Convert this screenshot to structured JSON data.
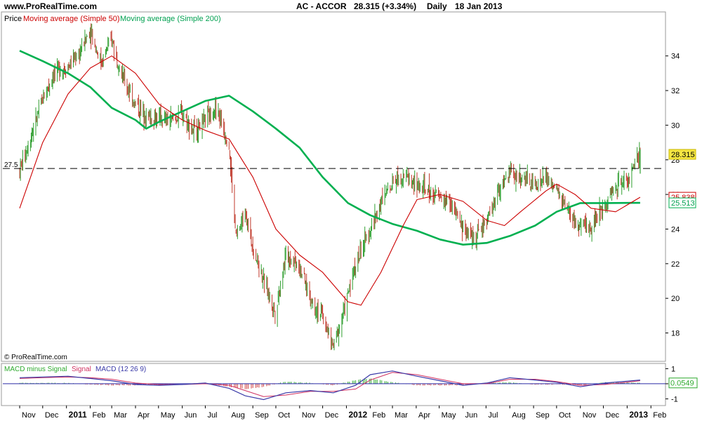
{
  "header": {
    "site": "www.ProRealTime.com",
    "title": "AC - ACCOR",
    "quote": "28.315 (+3.34%)",
    "period": "Daily",
    "date": "18 Jan 2013"
  },
  "watermark": "© ProRealTime.com",
  "legend": {
    "price": "Price",
    "ma50": "Moving average (Simple 50)",
    "ma200": "Moving average (Simple 200)"
  },
  "macd_legend": {
    "a": "MACD minus Signal",
    "b": "Signal",
    "c": "MACD (12 26 9)"
  },
  "colors": {
    "ma50": "#cc0000",
    "ma200": "#00b050",
    "candle_up": "#2f9e2f",
    "candle_down": "#c0392b",
    "macd": "#3a3aa8",
    "signal": "#d03060",
    "hist_pos": "#2eaa2e",
    "hist_neg": "#d04040",
    "zero_line": "#2a2aa8"
  },
  "chart_data": [
    {
      "type": "candlestick",
      "title": "AC - ACCOR",
      "y_ticks": [
        18,
        20,
        22,
        24,
        26,
        28,
        30,
        32,
        34
      ],
      "ylim": [
        16.4,
        36.5
      ],
      "grid": false,
      "reference_line": {
        "value": 27.5,
        "label": "27.5"
      },
      "last_price": "28.315",
      "ma200_last": "25.513",
      "ma50_last": "25.838",
      "x_labels": [
        "Nov",
        "Dec",
        "2011",
        "Feb",
        "Mar",
        "Apr",
        "May",
        "Jun",
        "Jul",
        "Aug",
        "Sep",
        "Oct",
        "Nov",
        "Dec",
        "2012",
        "Feb",
        "Mar",
        "Apr",
        "May",
        "Jun",
        "Jul",
        "Aug",
        "Sep",
        "Oct",
        "Nov",
        "Dec",
        "2013",
        "Feb"
      ],
      "series": [
        {
          "name": "Price",
          "points": [
            [
              "2010-11-01",
              27.4
            ],
            [
              "2010-11-15",
              29.3
            ],
            [
              "2010-12-01",
              31.5
            ],
            [
              "2010-12-15",
              33.0
            ],
            [
              "2011-01-03",
              33.4
            ],
            [
              "2011-01-18",
              34.2
            ],
            [
              "2011-02-01",
              35.5
            ],
            [
              "2011-02-15",
              33.6
            ],
            [
              "2011-03-01",
              35.0
            ],
            [
              "2011-03-15",
              32.8
            ],
            [
              "2011-04-01",
              31.2
            ],
            [
              "2011-04-15",
              30.5
            ],
            [
              "2011-05-02",
              30.4
            ],
            [
              "2011-05-16",
              30.2
            ],
            [
              "2011-06-01",
              30.7
            ],
            [
              "2011-06-15",
              29.7
            ],
            [
              "2011-07-01",
              30.3
            ],
            [
              "2011-07-15",
              31.0
            ],
            [
              "2011-08-01",
              28.8
            ],
            [
              "2011-08-10",
              23.5
            ],
            [
              "2011-08-22",
              25.0
            ],
            [
              "2011-09-01",
              23.0
            ],
            [
              "2011-09-15",
              21.0
            ],
            [
              "2011-09-30",
              19.2
            ],
            [
              "2011-10-14",
              22.5
            ],
            [
              "2011-10-31",
              22.0
            ],
            [
              "2011-11-15",
              20.0
            ],
            [
              "2011-11-30",
              19.0
            ],
            [
              "2011-12-15",
              17.2
            ],
            [
              "2011-12-30",
              19.5
            ],
            [
              "2012-01-13",
              22.0
            ],
            [
              "2012-02-01",
              24.0
            ],
            [
              "2012-02-15",
              25.5
            ],
            [
              "2012-03-01",
              26.8
            ],
            [
              "2012-03-15",
              27.2
            ],
            [
              "2012-04-02",
              26.5
            ],
            [
              "2012-04-16",
              26.2
            ],
            [
              "2012-05-02",
              25.8
            ],
            [
              "2012-05-16",
              25.5
            ],
            [
              "2012-06-01",
              24.0
            ],
            [
              "2012-06-15",
              23.5
            ],
            [
              "2012-07-02",
              24.5
            ],
            [
              "2012-07-16",
              26.0
            ],
            [
              "2012-08-01",
              27.3
            ],
            [
              "2012-08-15",
              27.0
            ],
            [
              "2012-09-03",
              26.5
            ],
            [
              "2012-09-17",
              27.0
            ],
            [
              "2012-10-01",
              26.2
            ],
            [
              "2012-10-15",
              25.0
            ],
            [
              "2012-11-01",
              24.0
            ],
            [
              "2012-11-15",
              24.2
            ],
            [
              "2012-12-03",
              25.5
            ],
            [
              "2012-12-17",
              26.5
            ],
            [
              "2013-01-04",
              27.0
            ],
            [
              "2013-01-18",
              28.315
            ]
          ]
        },
        {
          "name": "Moving average (Simple 50)",
          "points": [
            [
              "2010-11-01",
              25.2
            ],
            [
              "2010-12-01",
              29.0
            ],
            [
              "2011-01-03",
              31.8
            ],
            [
              "2011-02-01",
              33.3
            ],
            [
              "2011-03-01",
              34.0
            ],
            [
              "2011-04-01",
              33.0
            ],
            [
              "2011-05-02",
              31.2
            ],
            [
              "2011-06-01",
              30.3
            ],
            [
              "2011-07-01",
              29.7
            ],
            [
              "2011-08-01",
              29.2
            ],
            [
              "2011-09-01",
              27.0
            ],
            [
              "2011-10-01",
              24.0
            ],
            [
              "2011-11-01",
              22.5
            ],
            [
              "2011-12-01",
              21.5
            ],
            [
              "2012-01-03",
              19.8
            ],
            [
              "2012-01-20",
              19.6
            ],
            [
              "2012-02-15",
              21.5
            ],
            [
              "2012-03-15",
              24.2
            ],
            [
              "2012-04-02",
              25.7
            ],
            [
              "2012-05-02",
              26.0
            ],
            [
              "2012-06-01",
              25.6
            ],
            [
              "2012-07-02",
              24.5
            ],
            [
              "2012-07-25",
              24.2
            ],
            [
              "2012-08-15",
              25.0
            ],
            [
              "2012-09-17",
              26.2
            ],
            [
              "2012-10-01",
              26.6
            ],
            [
              "2012-10-25",
              26.0
            ],
            [
              "2012-11-15",
              25.2
            ],
            [
              "2012-12-17",
              25.0
            ],
            [
              "2013-01-18",
              25.838
            ]
          ]
        },
        {
          "name": "Moving average (Simple 200)",
          "points": [
            [
              "2010-11-01",
              34.3
            ],
            [
              "2010-12-01",
              33.7
            ],
            [
              "2011-01-03",
              33.0
            ],
            [
              "2011-02-01",
              32.2
            ],
            [
              "2011-03-01",
              31.0
            ],
            [
              "2011-04-01",
              30.3
            ],
            [
              "2011-04-15",
              29.8
            ],
            [
              "2011-05-02",
              30.2
            ],
            [
              "2011-06-01",
              30.8
            ],
            [
              "2011-07-01",
              31.4
            ],
            [
              "2011-08-01",
              31.7
            ],
            [
              "2011-09-01",
              30.8
            ],
            [
              "2011-10-01",
              29.8
            ],
            [
              "2011-11-01",
              28.7
            ],
            [
              "2011-12-01",
              27.0
            ],
            [
              "2012-01-03",
              25.5
            ],
            [
              "2012-02-01",
              24.8
            ],
            [
              "2012-03-01",
              24.3
            ],
            [
              "2012-04-02",
              23.9
            ],
            [
              "2012-05-02",
              23.4
            ],
            [
              "2012-06-01",
              23.1
            ],
            [
              "2012-07-02",
              23.2
            ],
            [
              "2012-08-01",
              23.6
            ],
            [
              "2012-09-03",
              24.2
            ],
            [
              "2012-10-01",
              25.0
            ],
            [
              "2012-11-01",
              25.5
            ],
            [
              "2012-12-03",
              25.5
            ],
            [
              "2013-01-18",
              25.513
            ]
          ]
        }
      ]
    },
    {
      "type": "line",
      "title": "MACD (12 26 9)",
      "y_ticks": [
        -1,
        0,
        1
      ],
      "ylim": [
        -1.4,
        1.3
      ],
      "last_value": "0.0549",
      "series": [
        {
          "name": "MACD",
          "points": [
            [
              "2010-11-01",
              0.4
            ],
            [
              "2010-12-01",
              0.45
            ],
            [
              "2011-01-03",
              0.5
            ],
            [
              "2011-02-01",
              0.35
            ],
            [
              "2011-03-01",
              0.2
            ],
            [
              "2011-04-01",
              -0.05
            ],
            [
              "2011-05-02",
              -0.1
            ],
            [
              "2011-06-01",
              -0.05
            ],
            [
              "2011-07-01",
              0.05
            ],
            [
              "2011-08-01",
              -0.3
            ],
            [
              "2011-08-22",
              -0.8
            ],
            [
              "2011-09-15",
              -1.05
            ],
            [
              "2011-10-14",
              -0.6
            ],
            [
              "2011-11-15",
              -0.45
            ],
            [
              "2011-12-15",
              -0.6
            ],
            [
              "2012-01-13",
              -0.1
            ],
            [
              "2012-02-01",
              0.6
            ],
            [
              "2012-03-01",
              0.85
            ],
            [
              "2012-04-02",
              0.5
            ],
            [
              "2012-05-02",
              0.2
            ],
            [
              "2012-06-01",
              -0.1
            ],
            [
              "2012-07-02",
              0.05
            ],
            [
              "2012-08-01",
              0.4
            ],
            [
              "2012-09-03",
              0.25
            ],
            [
              "2012-10-01",
              0.1
            ],
            [
              "2012-11-01",
              -0.2
            ],
            [
              "2012-12-03",
              0.05
            ],
            [
              "2013-01-18",
              0.25
            ]
          ]
        },
        {
          "name": "Signal",
          "points": [
            [
              "2010-11-01",
              0.35
            ],
            [
              "2010-12-01",
              0.4
            ],
            [
              "2011-01-03",
              0.45
            ],
            [
              "2011-02-01",
              0.4
            ],
            [
              "2011-03-01",
              0.3
            ],
            [
              "2011-04-01",
              0.05
            ],
            [
              "2011-05-02",
              -0.05
            ],
            [
              "2011-06-01",
              -0.05
            ],
            [
              "2011-07-01",
              0.0
            ],
            [
              "2011-08-01",
              -0.1
            ],
            [
              "2011-08-22",
              -0.45
            ],
            [
              "2011-09-15",
              -0.85
            ],
            [
              "2011-10-14",
              -0.75
            ],
            [
              "2011-11-15",
              -0.5
            ],
            [
              "2011-12-15",
              -0.5
            ],
            [
              "2012-01-13",
              -0.35
            ],
            [
              "2012-02-01",
              0.25
            ],
            [
              "2012-03-01",
              0.75
            ],
            [
              "2012-04-02",
              0.6
            ],
            [
              "2012-05-02",
              0.3
            ],
            [
              "2012-06-01",
              0.0
            ],
            [
              "2012-07-02",
              0.0
            ],
            [
              "2012-08-01",
              0.3
            ],
            [
              "2012-09-03",
              0.3
            ],
            [
              "2012-10-01",
              0.15
            ],
            [
              "2012-11-01",
              -0.1
            ],
            [
              "2012-12-03",
              -0.05
            ],
            [
              "2013-01-18",
              0.2
            ]
          ]
        }
      ]
    }
  ]
}
